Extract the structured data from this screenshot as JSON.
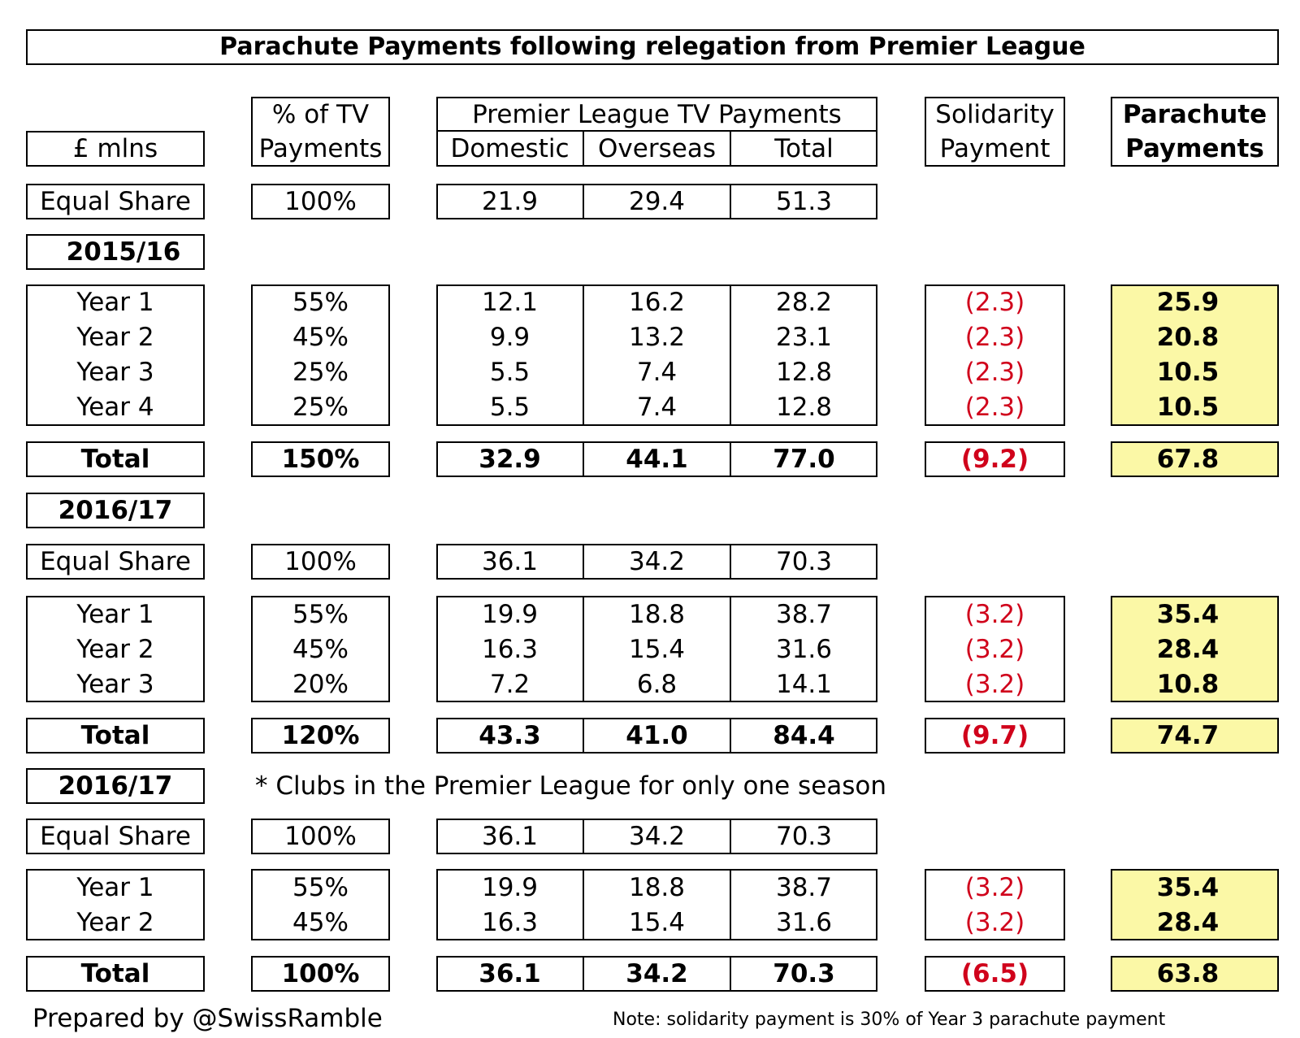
{
  "title": "Parachute Payments following relegation from Premier League",
  "header": {
    "unit": "£ mlns",
    "pct_line1": "% of TV",
    "pct_line2": "Payments",
    "pl_tv": "Premier League TV Payments",
    "domestic": "Domestic",
    "overseas": "Overseas",
    "total": "Total",
    "solidarity_line1": "Solidarity",
    "solidarity_line2": "Payment",
    "parachute_line1": "Parachute",
    "parachute_line2": "Payments"
  },
  "equal_share_1516": {
    "label": "Equal Share",
    "pct": "100%",
    "domestic": "21.9",
    "overseas": "29.4",
    "total": "51.3"
  },
  "season_1516": {
    "label": "2015/16",
    "rows": [
      {
        "label": "Year 1",
        "pct": "55%",
        "domestic": "12.1",
        "overseas": "16.2",
        "total": "28.2",
        "solidarity": "(2.3)",
        "parachute": "25.9"
      },
      {
        "label": "Year 2",
        "pct": "45%",
        "domestic": "9.9",
        "overseas": "13.2",
        "total": "23.1",
        "solidarity": "(2.3)",
        "parachute": "20.8"
      },
      {
        "label": "Year 3",
        "pct": "25%",
        "domestic": "5.5",
        "overseas": "7.4",
        "total": "12.8",
        "solidarity": "(2.3)",
        "parachute": "10.5"
      },
      {
        "label": "Year 4",
        "pct": "25%",
        "domestic": "5.5",
        "overseas": "7.4",
        "total": "12.8",
        "solidarity": "(2.3)",
        "parachute": "10.5"
      }
    ],
    "total": {
      "label": "Total",
      "pct": "150%",
      "domestic": "32.9",
      "overseas": "44.1",
      "total": "77.0",
      "solidarity": "(9.2)",
      "parachute": "67.8"
    }
  },
  "season_1617": {
    "label": "2016/17",
    "equal_share": {
      "label": "Equal Share",
      "pct": "100%",
      "domestic": "36.1",
      "overseas": "34.2",
      "total": "70.3"
    },
    "rows": [
      {
        "label": "Year 1",
        "pct": "55%",
        "domestic": "19.9",
        "overseas": "18.8",
        "total": "38.7",
        "solidarity": "(3.2)",
        "parachute": "35.4"
      },
      {
        "label": "Year 2",
        "pct": "45%",
        "domestic": "16.3",
        "overseas": "15.4",
        "total": "31.6",
        "solidarity": "(3.2)",
        "parachute": "28.4"
      },
      {
        "label": "Year 3",
        "pct": "20%",
        "domestic": "7.2",
        "overseas": "6.8",
        "total": "14.1",
        "solidarity": "(3.2)",
        "parachute": "10.8"
      }
    ],
    "total": {
      "label": "Total",
      "pct": "120%",
      "domestic": "43.3",
      "overseas": "41.0",
      "total": "84.4",
      "solidarity": "(9.7)",
      "parachute": "74.7"
    }
  },
  "season_1617_one": {
    "label": "2016/17",
    "note": "* Clubs in the Premier League for only one season",
    "equal_share": {
      "label": "Equal Share",
      "pct": "100%",
      "domestic": "36.1",
      "overseas": "34.2",
      "total": "70.3"
    },
    "rows": [
      {
        "label": "Year 1",
        "pct": "55%",
        "domestic": "19.9",
        "overseas": "18.8",
        "total": "38.7",
        "solidarity": "(3.2)",
        "parachute": "35.4"
      },
      {
        "label": "Year 2",
        "pct": "45%",
        "domestic": "16.3",
        "overseas": "15.4",
        "total": "31.6",
        "solidarity": "(3.2)",
        "parachute": "28.4"
      }
    ],
    "total": {
      "label": "Total",
      "pct": "100%",
      "domestic": "36.1",
      "overseas": "34.2",
      "total": "70.3",
      "solidarity": "(6.5)",
      "parachute": "63.8"
    }
  },
  "footer": {
    "prepared_by": "Prepared by @SwissRamble",
    "note": "Note: solidarity payment is 30% of Year 3 parachute payment"
  },
  "colors": {
    "negative": "#d0021b",
    "highlight": "#fbf8a6"
  }
}
